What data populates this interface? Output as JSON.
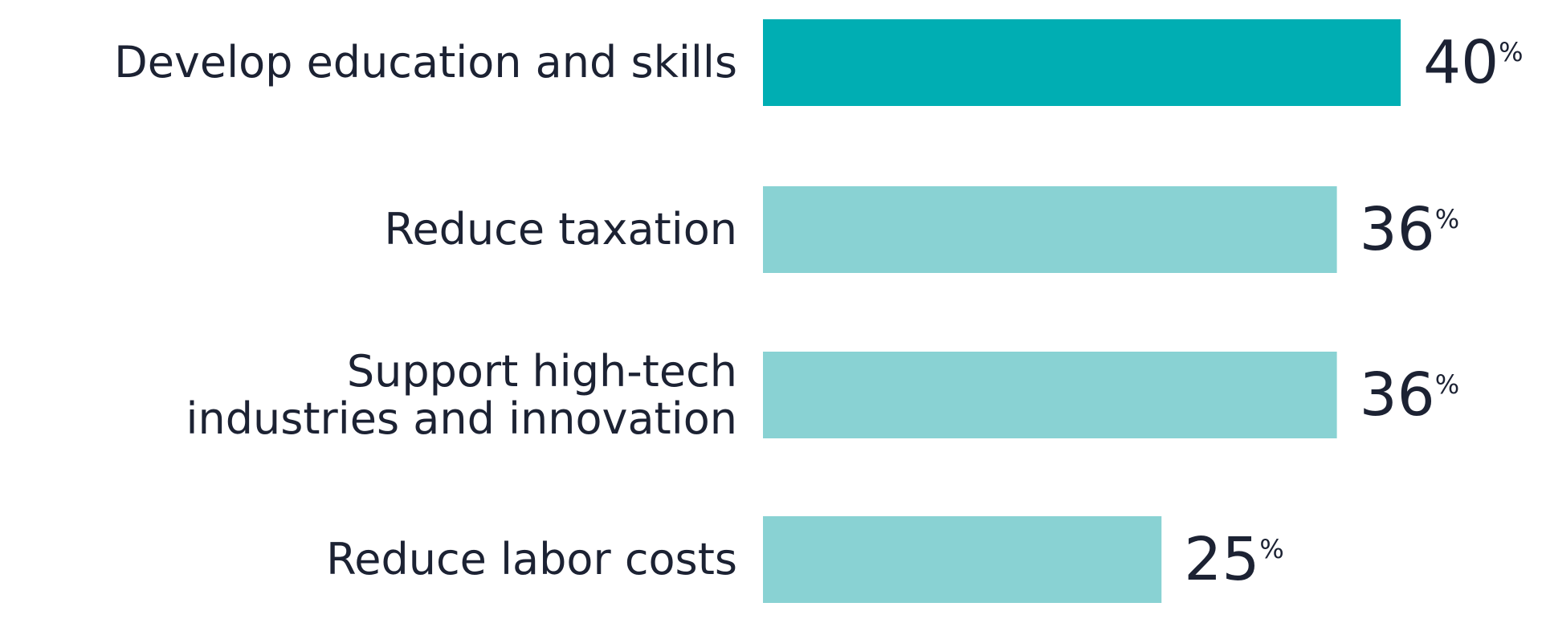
{
  "chart_data": {
    "type": "bar",
    "orientation": "horizontal",
    "categories": [
      "Develop education and skills",
      "Reduce taxation",
      "Support high-tech\nindustries and innovation",
      "Reduce labor costs"
    ],
    "values": [
      40,
      36,
      36,
      25
    ],
    "value_labels": [
      "40%",
      "36%",
      "36%",
      "25%"
    ],
    "colors": [
      "#00aeb3",
      "#89d2d3",
      "#89d2d3",
      "#89d2d3"
    ]
  }
}
